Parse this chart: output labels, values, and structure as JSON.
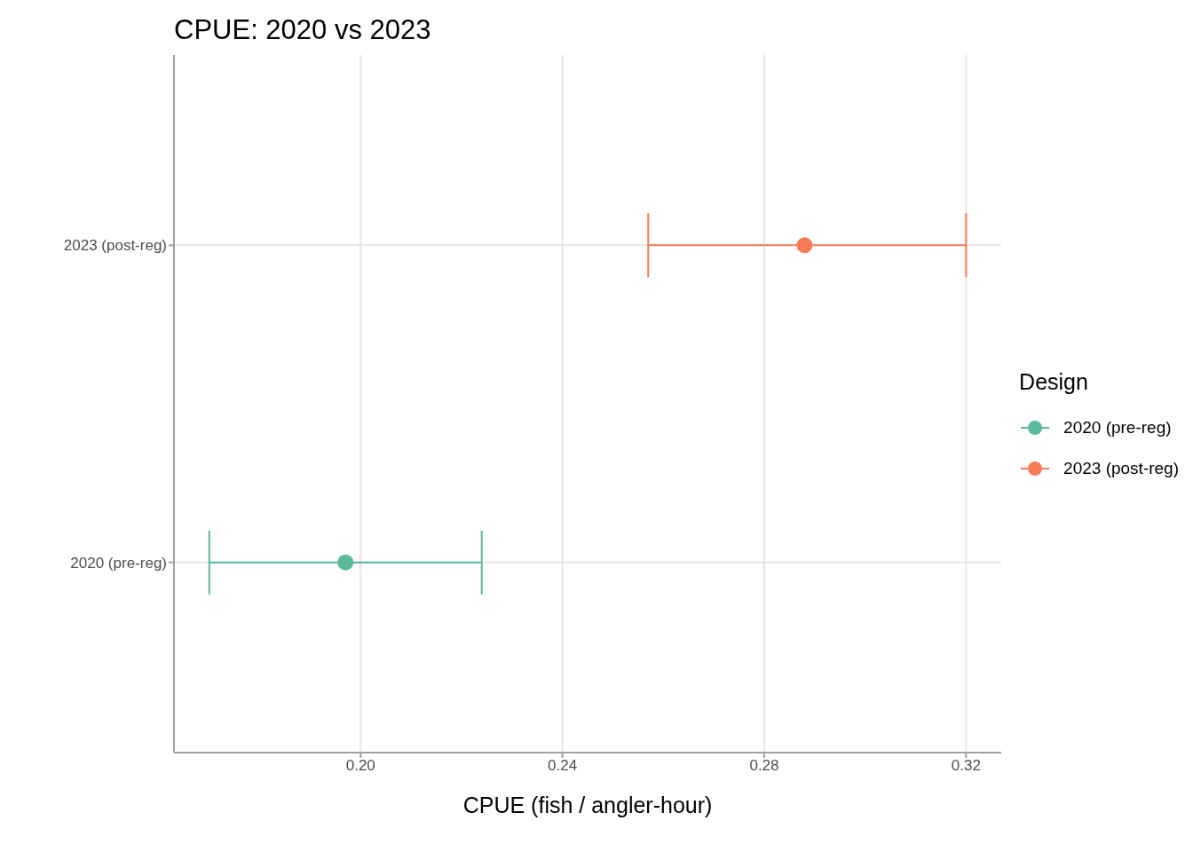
{
  "chart_data": {
    "type": "scatter",
    "orientation": "horizontal",
    "title": "CPUE: 2020 vs 2023",
    "xlabel": "CPUE (fish / angler-hour)",
    "legend_title": "Design",
    "categories": [
      "2023 (post-reg)",
      "2020 (pre-reg)"
    ],
    "series": [
      {
        "name": "2020 (pre-reg)",
        "color": "#5bb997",
        "values": [
          null,
          0.197
        ],
        "errors": [
          null,
          [
            0.17,
            0.224
          ]
        ]
      },
      {
        "name": "2023 (post-reg)",
        "color": "#f97b56",
        "values": [
          0.288,
          null
        ],
        "errors": [
          [
            0.257,
            0.32
          ],
          null
        ]
      }
    ],
    "xlim": [
      0.163,
      0.327
    ],
    "xticks": [
      {
        "value": 0.2,
        "label": "0.20"
      },
      {
        "value": 0.24,
        "label": "0.24"
      },
      {
        "value": 0.28,
        "label": "0.28"
      },
      {
        "value": 0.32,
        "label": "0.32"
      }
    ],
    "grid": true,
    "legend": "right",
    "marker": "circle"
  }
}
